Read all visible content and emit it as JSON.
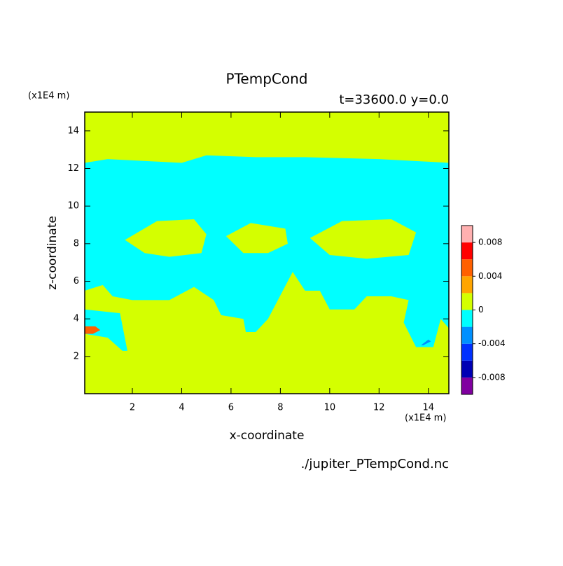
{
  "chart_data": {
    "type": "contour",
    "title": "PTempCond",
    "subtitle": "t=33600.0 y=0.0",
    "x_label": "x-coordinate",
    "y_label": "z-coordinate",
    "x_unit": "(x1E4 m)",
    "y_unit": "(x1E4 m)",
    "source": "./jupiter_PTempCond.nc",
    "xlim": [
      0.07,
      14.83
    ],
    "ylim": [
      0.02,
      15.0
    ],
    "xticks": [
      2,
      4,
      6,
      8,
      10,
      12,
      14
    ],
    "yticks": [
      2,
      4,
      6,
      8,
      10,
      12,
      14
    ],
    "levels": [
      -0.01,
      -0.008,
      -0.006,
      -0.004,
      -0.002,
      0,
      0.002,
      0.004,
      0.006,
      0.008,
      0.01
    ],
    "colors": [
      "#8000a0",
      "#0000b4",
      "#0030ff",
      "#0090ff",
      "#00ffff",
      "#d4ff00",
      "#ffa500",
      "#ff6000",
      "#ff0000",
      "#ffb0b0"
    ],
    "colorbar_ticks": [
      -0.008,
      -0.004,
      0,
      0.004,
      0.008
    ],
    "contours": [
      {
        "level": 0,
        "x": [
          0.07,
          14.83,
          14.83,
          0.07
        ],
        "y": [
          0.02,
          0.02,
          15.0,
          15.0
        ]
      },
      {
        "level": -0.002,
        "x": [
          0.07,
          1.0,
          4.0,
          5.0,
          7.0,
          9.0,
          12.0,
          14.83,
          14.83,
          14.5,
          14.2,
          13.5,
          13.0,
          13.2,
          12.5,
          11.5,
          11.0,
          10.0,
          9.6,
          9.0,
          8.5,
          7.5,
          7.0,
          6.6,
          6.5,
          5.6,
          5.3,
          4.5,
          3.5,
          2.0,
          1.2,
          0.8,
          0.07,
          0.07,
          1.5,
          1.8,
          1.6,
          1.0,
          0.07
        ],
        "y": [
          12.3,
          12.5,
          12.3,
          12.7,
          12.6,
          12.6,
          12.5,
          12.3,
          3.5,
          4.0,
          2.5,
          2.5,
          3.8,
          5.0,
          5.2,
          5.2,
          4.5,
          4.5,
          5.5,
          5.5,
          6.5,
          4.0,
          3.3,
          3.3,
          4.0,
          4.2,
          5.0,
          5.7,
          5.0,
          5.0,
          5.2,
          5.8,
          5.5,
          4.5,
          4.3,
          2.3,
          2.3,
          3.0,
          3.2
        ]
      },
      {
        "level": 0,
        "x": [
          1.7,
          3.0,
          4.5,
          5.0,
          4.8,
          3.5,
          2.5,
          1.7
        ],
        "y": [
          8.2,
          9.2,
          9.3,
          8.5,
          7.5,
          7.3,
          7.5,
          8.2
        ]
      },
      {
        "level": 0,
        "x": [
          5.8,
          6.8,
          8.2,
          8.3,
          7.5,
          6.5,
          5.8
        ],
        "y": [
          8.4,
          9.1,
          8.8,
          8.0,
          7.5,
          7.5,
          8.4
        ]
      },
      {
        "level": 0,
        "x": [
          9.2,
          10.5,
          12.5,
          13.5,
          13.2,
          11.5,
          10.0,
          9.2
        ],
        "y": [
          8.3,
          9.2,
          9.3,
          8.6,
          7.4,
          7.2,
          7.4,
          8.3
        ]
      },
      {
        "level": 0.004,
        "x": [
          0.07,
          0.5,
          0.7,
          0.4,
          0.07
        ],
        "y": [
          3.6,
          3.6,
          3.4,
          3.2,
          3.2
        ]
      },
      {
        "level": -0.004,
        "x": [
          13.7,
          14.0,
          14.1,
          13.8,
          13.7
        ],
        "y": [
          2.6,
          2.9,
          2.8,
          2.6,
          2.6
        ]
      }
    ]
  }
}
